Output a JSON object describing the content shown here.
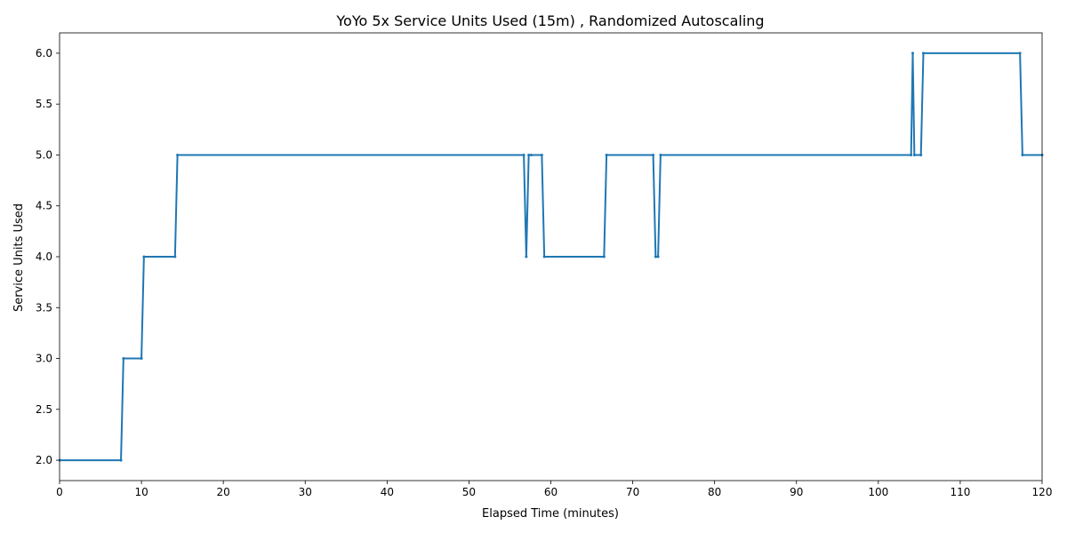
{
  "chart_data": {
    "type": "line",
    "title": "YoYo 5x Service Units Used (15m) , Randomized Autoscaling",
    "xlabel": "Elapsed Time (minutes)",
    "ylabel": "Service Units Used",
    "xlim": [
      0,
      120
    ],
    "ylim": [
      1.8,
      6.2
    ],
    "xticks": [
      0,
      10,
      20,
      30,
      40,
      50,
      60,
      70,
      80,
      90,
      100,
      110,
      120
    ],
    "xtick_labels": [
      "0",
      "10",
      "20",
      "30",
      "40",
      "50",
      "60",
      "70",
      "80",
      "90",
      "100",
      "110",
      "120"
    ],
    "yticks": [
      2.0,
      2.5,
      3.0,
      3.5,
      4.0,
      4.5,
      5.0,
      5.5,
      6.0
    ],
    "ytick_labels": [
      "2.0",
      "2.5",
      "3.0",
      "3.5",
      "4.0",
      "4.5",
      "5.0",
      "5.5",
      "6.0"
    ],
    "grid": false,
    "line_color": "#1f77b4",
    "series": [
      {
        "x": [
          0,
          7.5,
          7.8,
          10.0,
          10.3,
          14.1,
          14.4,
          56.7,
          57.0,
          57.3,
          57.6,
          58.9,
          59.2,
          66.5,
          66.8,
          72.5,
          72.8,
          73.1,
          73.4,
          104.0,
          104.2,
          104.4,
          105.2,
          105.5,
          117.3,
          117.6,
          120
        ],
        "y": [
          2,
          2,
          3,
          3,
          4,
          4,
          5,
          5,
          4,
          5,
          5,
          5,
          4,
          4,
          5,
          5,
          4,
          4,
          5,
          5,
          6,
          5,
          5,
          6,
          6,
          5,
          5
        ]
      }
    ]
  }
}
